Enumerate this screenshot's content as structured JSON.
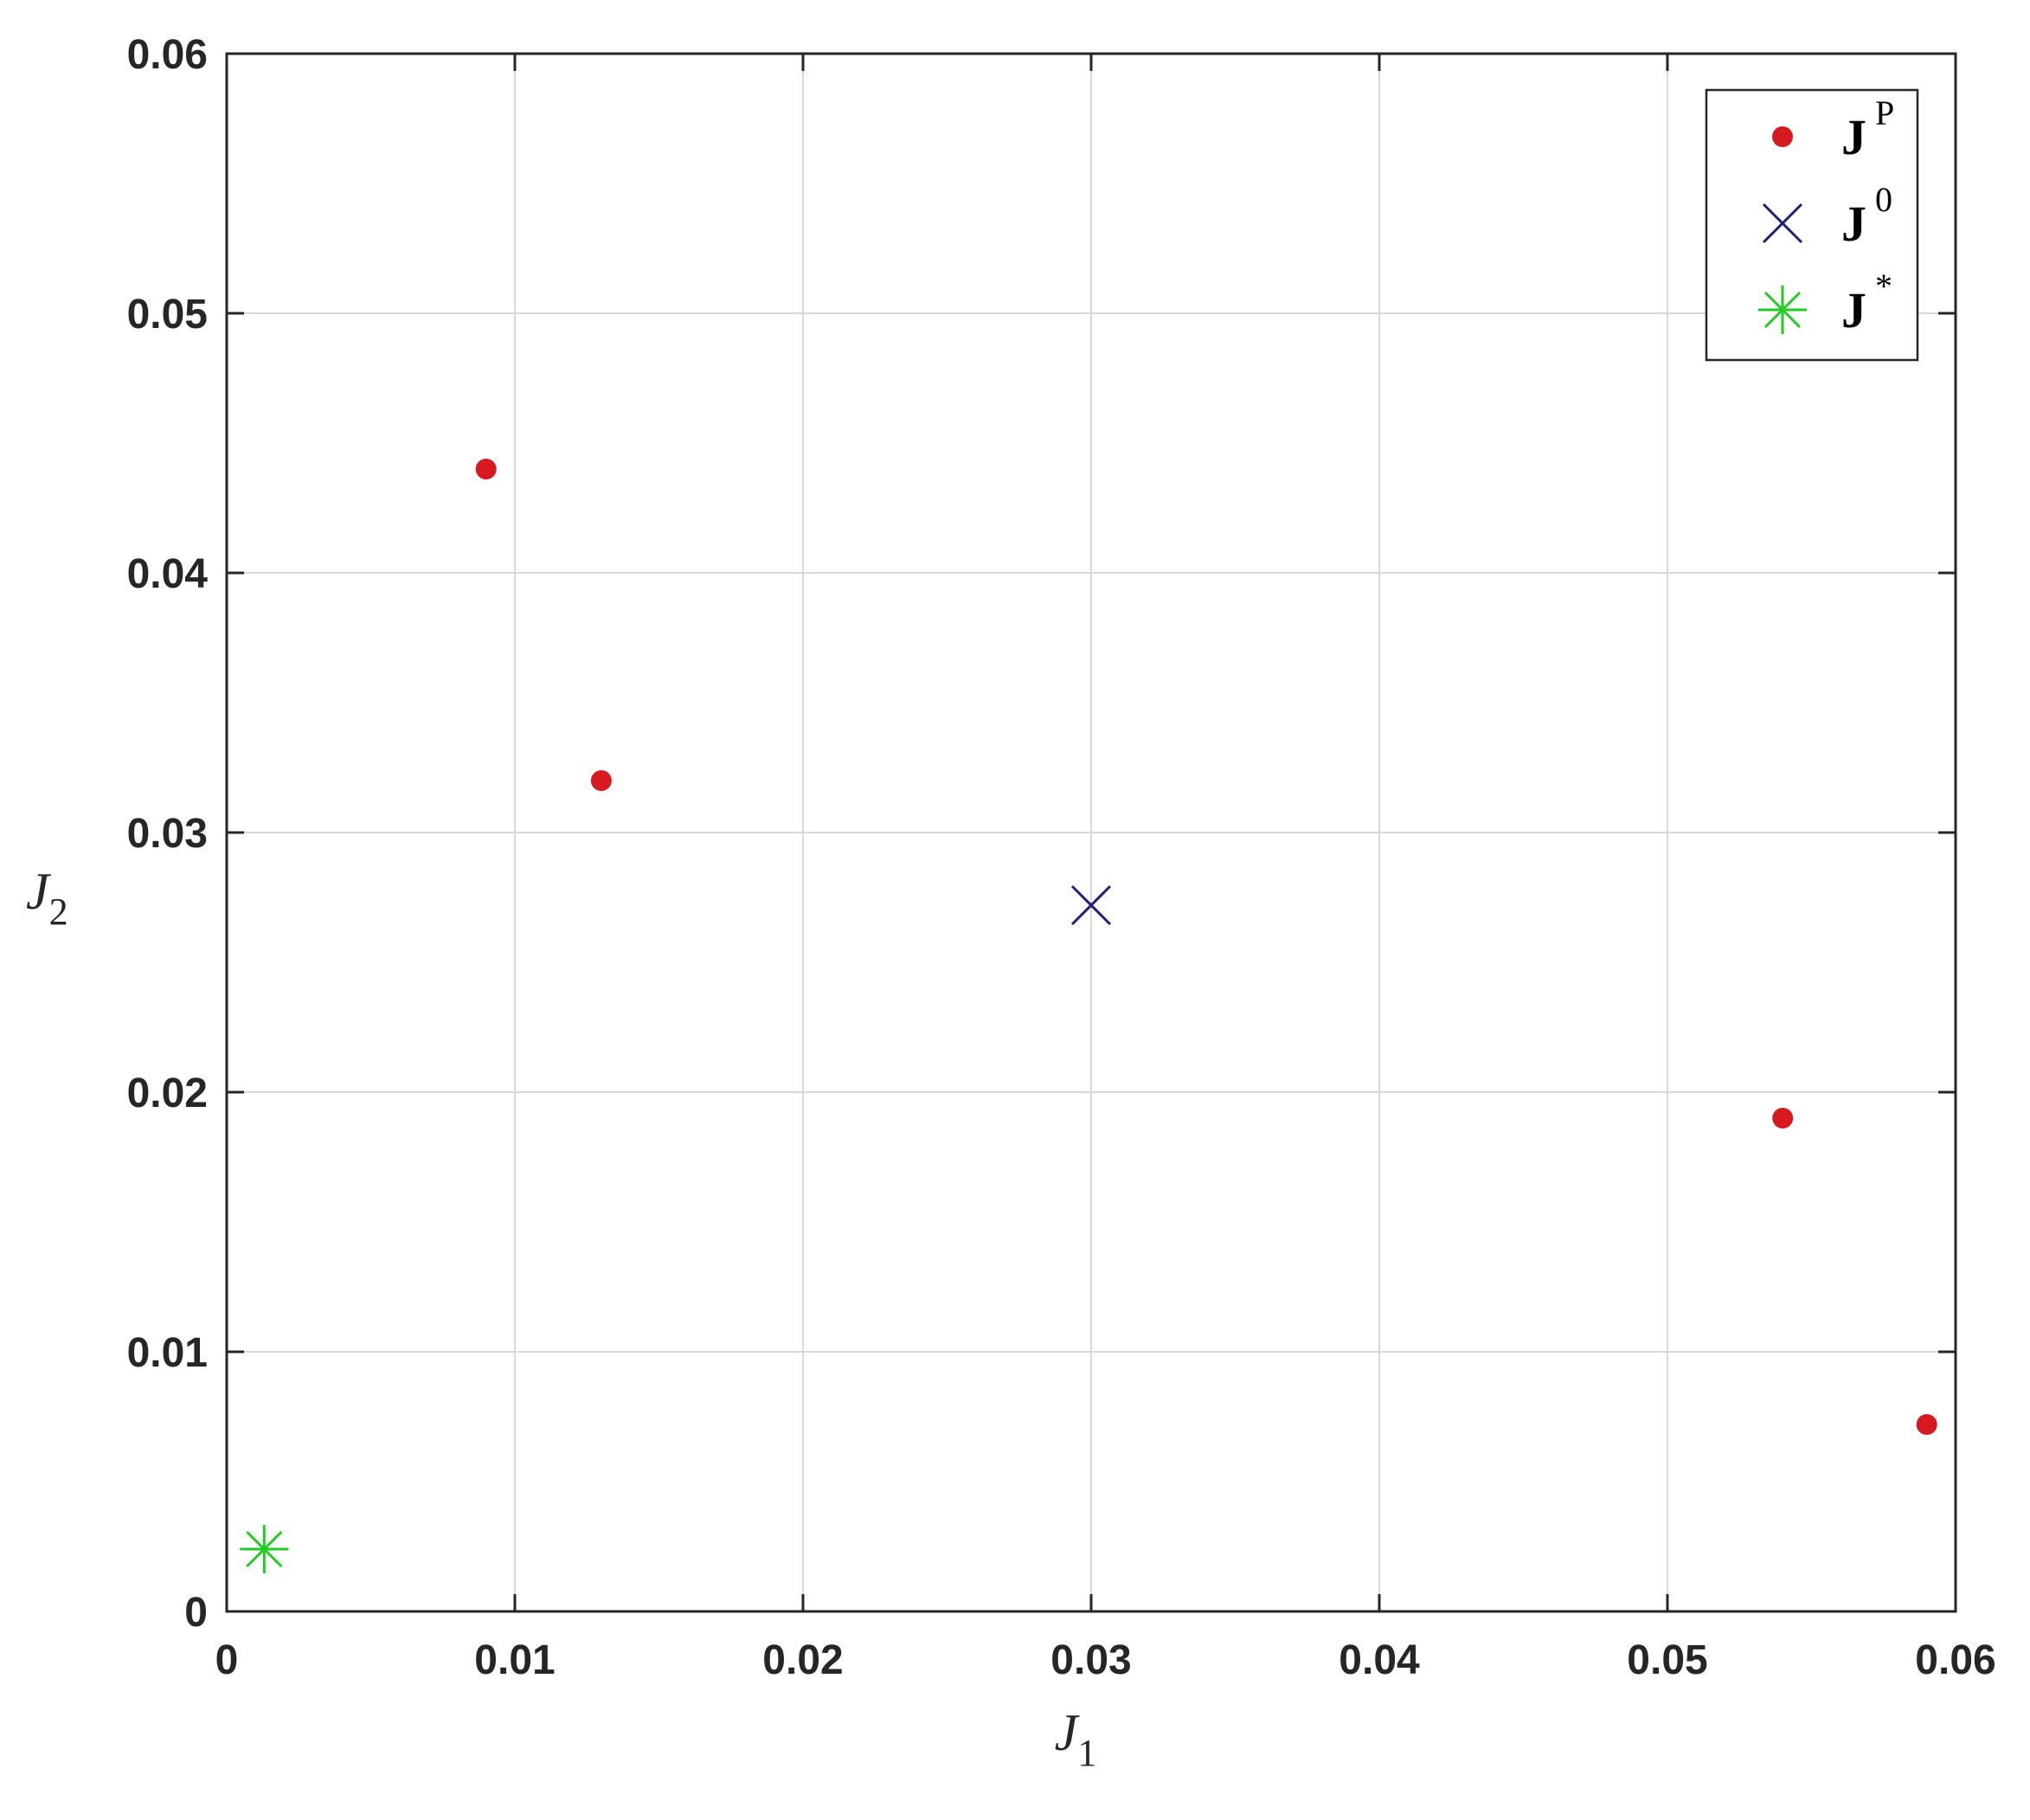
{
  "chart_data": {
    "type": "scatter",
    "title": "",
    "xlabel": {
      "base": "J",
      "sub": "1"
    },
    "ylabel": {
      "base": "J",
      "sub": "2"
    },
    "xlim": [
      0,
      0.06
    ],
    "ylim": [
      0,
      0.06
    ],
    "grid": true,
    "legend_position": "top-right",
    "x_ticks": [
      0,
      0.01,
      0.02,
      0.03,
      0.04,
      0.05,
      0.06
    ],
    "x_tick_labels": [
      "0",
      "0.01",
      "0.02",
      "0.03",
      "0.04",
      "0.05",
      "0.06"
    ],
    "y_ticks": [
      0,
      0.01,
      0.02,
      0.03,
      0.04,
      0.05,
      0.06
    ],
    "y_tick_labels": [
      "0",
      "0.01",
      "0.02",
      "0.03",
      "0.04",
      "0.05",
      "0.06"
    ],
    "series": [
      {
        "name": {
          "base": "J",
          "sup": "P"
        },
        "marker": "dot",
        "color": "#d71920",
        "points": [
          {
            "x": 0.009,
            "y": 0.044
          },
          {
            "x": 0.013,
            "y": 0.032
          },
          {
            "x": 0.054,
            "y": 0.019
          },
          {
            "x": 0.059,
            "y": 0.0072
          }
        ]
      },
      {
        "name": {
          "base": "J",
          "sup": "0"
        },
        "marker": "x",
        "color": "#1f1f7a",
        "points": [
          {
            "x": 0.03,
            "y": 0.0272
          }
        ]
      },
      {
        "name": {
          "base": "J",
          "sup": "*"
        },
        "marker": "asterisk",
        "color": "#22cc22",
        "points": [
          {
            "x": 0.0013,
            "y": 0.0024
          }
        ]
      }
    ]
  }
}
